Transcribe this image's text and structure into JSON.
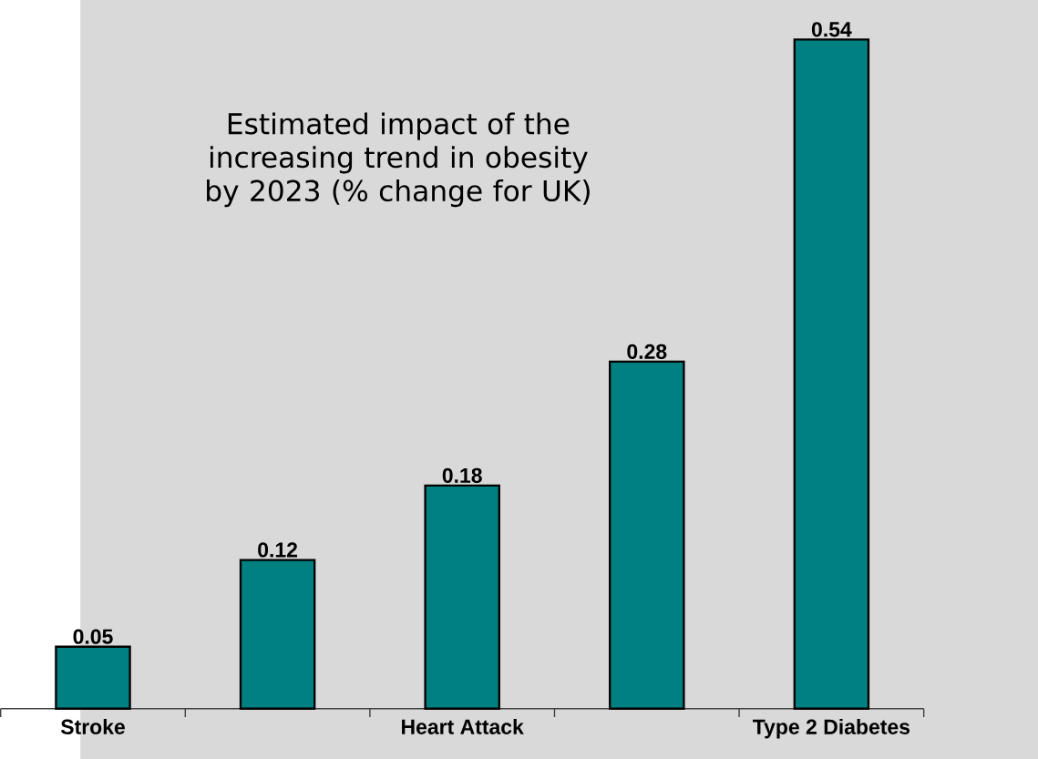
{
  "chart_data": {
    "type": "bar",
    "title": "Estimated impact of the increasing trend in obesity by 2023 (% change for UK)",
    "categories": [
      "Stroke",
      null,
      "Heart Attack",
      null,
      "Type 2 Diabetes"
    ],
    "values": [
      0.05,
      0.12,
      0.18,
      0.28,
      0.54
    ],
    "color": "#008080",
    "data_labels": true
  }
}
